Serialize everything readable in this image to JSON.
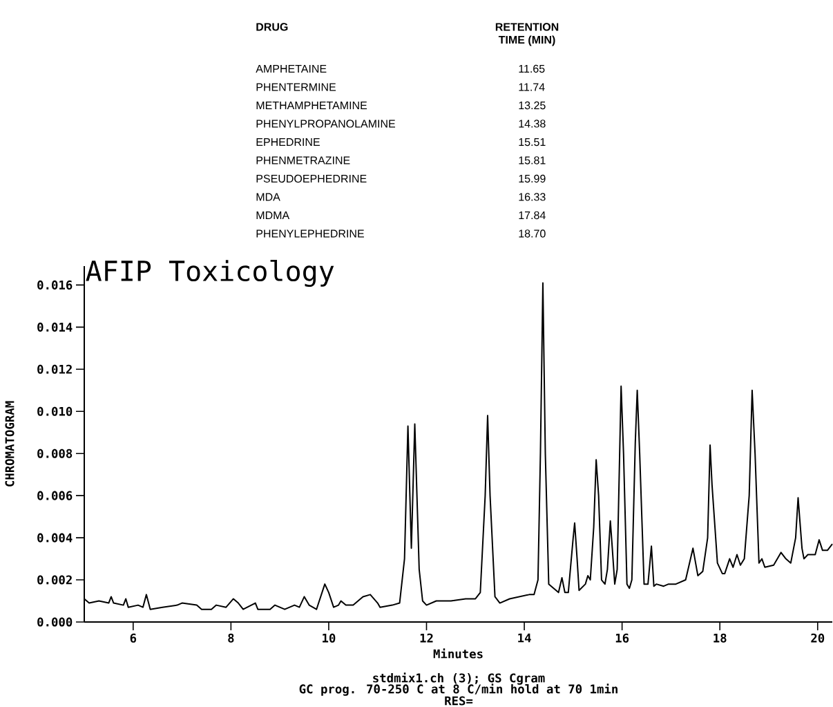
{
  "chart_data": {
    "type": "line",
    "title": "AFIP Toxicology",
    "xlabel": "Minutes",
    "ylabel": "CHROMATOGRAM",
    "annotations": [
      "DRUG",
      "RETENTION TIME (MIN)",
      "AMPHETAINE",
      "11.65",
      "PHENTERMINE",
      "11.74",
      "METHAMPHETAMINE",
      "13.25",
      "PHENYLPROPANOLAMINE",
      "14.38",
      "EPHEDRINE",
      "15.51",
      "PHENMETRAZINE",
      "15.81",
      "PSEUDOEPHEDRINE",
      "15.99",
      "MDA",
      "16.33",
      "MDMA",
      "17.84",
      "PHENYLEPHEDRINE",
      "18.70",
      "stdmix1.ch (3); GS Cgram",
      "GC prog. 70-250 C at 8 C/min hold at 70 1min",
      "RES="
    ],
    "xlim": [
      5,
      20.3
    ],
    "ylim": [
      0,
      0.0169
    ],
    "xticks": [
      6,
      8,
      10,
      12,
      14,
      16,
      18,
      20
    ],
    "yticks": [
      {
        "value": 0,
        "label": "0.000"
      },
      {
        "value": 0.002,
        "label": "0.002"
      },
      {
        "value": 0.004,
        "label": "0.004"
      },
      {
        "value": 0.006,
        "label": "0.006"
      },
      {
        "value": 0.008,
        "label": "0.008"
      },
      {
        "value": 0.01,
        "label": "0.010"
      },
      {
        "value": 0.012,
        "label": "0.012"
      },
      {
        "value": 0.014,
        "label": "0.014"
      },
      {
        "value": 0.016,
        "label": "0.016"
      }
    ],
    "x": [
      5.0,
      5.1,
      5.3,
      5.5,
      5.55,
      5.6,
      5.8,
      5.85,
      5.9,
      6.1,
      6.2,
      6.27,
      6.35,
      6.6,
      6.9,
      7.0,
      7.3,
      7.4,
      7.6,
      7.7,
      7.9,
      8.05,
      8.15,
      8.25,
      8.5,
      8.55,
      8.8,
      8.9,
      9.1,
      9.3,
      9.4,
      9.5,
      9.6,
      9.75,
      9.92,
      10.0,
      10.1,
      10.2,
      10.25,
      10.35,
      10.5,
      10.7,
      10.85,
      11.0,
      11.05,
      11.3,
      11.45,
      11.55,
      11.62,
      11.69,
      11.76,
      11.85,
      11.92,
      12.0,
      12.2,
      12.5,
      12.8,
      13.0,
      13.1,
      13.2,
      13.25,
      13.3,
      13.4,
      13.5,
      13.7,
      13.9,
      14.1,
      14.2,
      14.28,
      14.33,
      14.38,
      14.43,
      14.5,
      14.6,
      14.7,
      14.77,
      14.83,
      14.9,
      15.0,
      15.03,
      15.08,
      15.12,
      15.25,
      15.3,
      15.35,
      15.42,
      15.47,
      15.52,
      15.58,
      15.65,
      15.7,
      15.76,
      15.8,
      15.85,
      15.9,
      15.98,
      16.03,
      16.1,
      16.15,
      16.2,
      16.27,
      16.31,
      16.36,
      16.45,
      16.53,
      16.6,
      16.65,
      16.7,
      16.85,
      16.95,
      17.1,
      17.3,
      17.45,
      17.55,
      17.65,
      17.75,
      17.8,
      17.84,
      17.95,
      18.05,
      18.1,
      18.2,
      18.27,
      18.35,
      18.42,
      18.5,
      18.6,
      18.66,
      18.72,
      18.8,
      18.86,
      18.92,
      19.1,
      19.25,
      19.35,
      19.45,
      19.55,
      19.6,
      19.68,
      19.72,
      19.8,
      19.95,
      20.03,
      20.1,
      20.2,
      20.3
    ],
    "series": [
      {
        "color": "#000000",
        "values": [
          0.0011,
          0.0009,
          0.001,
          0.0009,
          0.0012,
          0.0009,
          0.0008,
          0.0011,
          0.0007,
          0.0008,
          0.0007,
          0.0013,
          0.0006,
          0.0007,
          0.0008,
          0.0009,
          0.0008,
          0.0006,
          0.0006,
          0.0008,
          0.0007,
          0.0011,
          0.0009,
          0.0006,
          0.0009,
          0.0006,
          0.0006,
          0.0008,
          0.0006,
          0.0008,
          0.0007,
          0.0012,
          0.0008,
          0.0006,
          0.0018,
          0.0014,
          0.0007,
          0.0008,
          0.001,
          0.0008,
          0.0008,
          0.0012,
          0.0013,
          0.0009,
          0.0007,
          0.0008,
          0.0009,
          0.003,
          0.0093,
          0.0035,
          0.0094,
          0.0025,
          0.001,
          0.0008,
          0.001,
          0.001,
          0.0011,
          0.0011,
          0.0014,
          0.006,
          0.0098,
          0.006,
          0.0012,
          0.0009,
          0.0011,
          0.0012,
          0.0013,
          0.0013,
          0.002,
          0.008,
          0.0161,
          0.008,
          0.0018,
          0.0016,
          0.0014,
          0.0021,
          0.0014,
          0.0014,
          0.004,
          0.0047,
          0.003,
          0.0015,
          0.0018,
          0.0022,
          0.002,
          0.0045,
          0.0077,
          0.006,
          0.002,
          0.0018,
          0.0025,
          0.0048,
          0.0035,
          0.0018,
          0.0025,
          0.0112,
          0.008,
          0.0018,
          0.0016,
          0.002,
          0.0085,
          0.011,
          0.008,
          0.0018,
          0.0018,
          0.0036,
          0.0017,
          0.0018,
          0.0017,
          0.0018,
          0.0018,
          0.002,
          0.0035,
          0.0022,
          0.0024,
          0.004,
          0.0084,
          0.0065,
          0.0028,
          0.0023,
          0.0023,
          0.003,
          0.0026,
          0.0032,
          0.0027,
          0.003,
          0.006,
          0.011,
          0.008,
          0.0028,
          0.003,
          0.0026,
          0.0027,
          0.0033,
          0.003,
          0.0028,
          0.004,
          0.0059,
          0.0035,
          0.003,
          0.0032,
          0.0032,
          0.0039,
          0.0034,
          0.0034,
          0.0037
        ]
      }
    ]
  }
}
